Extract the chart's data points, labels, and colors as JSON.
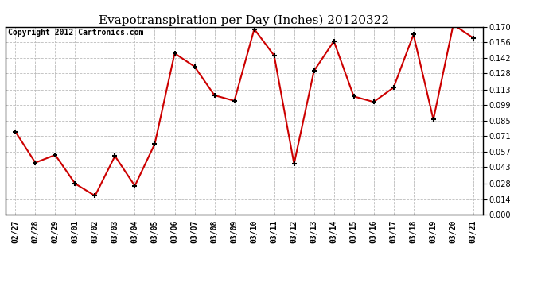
{
  "title": "Evapotranspiration per Day (Inches) 20120322",
  "copyright": "Copyright 2012 Cartronics.com",
  "labels": [
    "02/27",
    "02/28",
    "02/29",
    "03/01",
    "03/02",
    "03/03",
    "03/04",
    "03/05",
    "03/06",
    "03/07",
    "03/08",
    "03/09",
    "03/10",
    "03/11",
    "03/12",
    "03/13",
    "03/14",
    "03/15",
    "03/16",
    "03/17",
    "03/18",
    "03/19",
    "03/20",
    "03/21"
  ],
  "values": [
    0.075,
    0.047,
    0.054,
    0.028,
    0.017,
    0.053,
    0.026,
    0.064,
    0.146,
    0.134,
    0.108,
    0.103,
    0.168,
    0.144,
    0.046,
    0.13,
    0.157,
    0.107,
    0.102,
    0.115,
    0.163,
    0.086,
    0.172,
    0.16
  ],
  "ylim": [
    0.0,
    0.17
  ],
  "yticks": [
    0.0,
    0.014,
    0.028,
    0.043,
    0.057,
    0.071,
    0.085,
    0.099,
    0.113,
    0.128,
    0.142,
    0.156,
    0.17
  ],
  "line_color": "#cc0000",
  "marker": "+",
  "marker_color": "#000000",
  "bg_color": "#ffffff",
  "grid_color": "#bbbbbb",
  "title_fontsize": 11,
  "copyright_fontsize": 7,
  "tick_fontsize": 7
}
